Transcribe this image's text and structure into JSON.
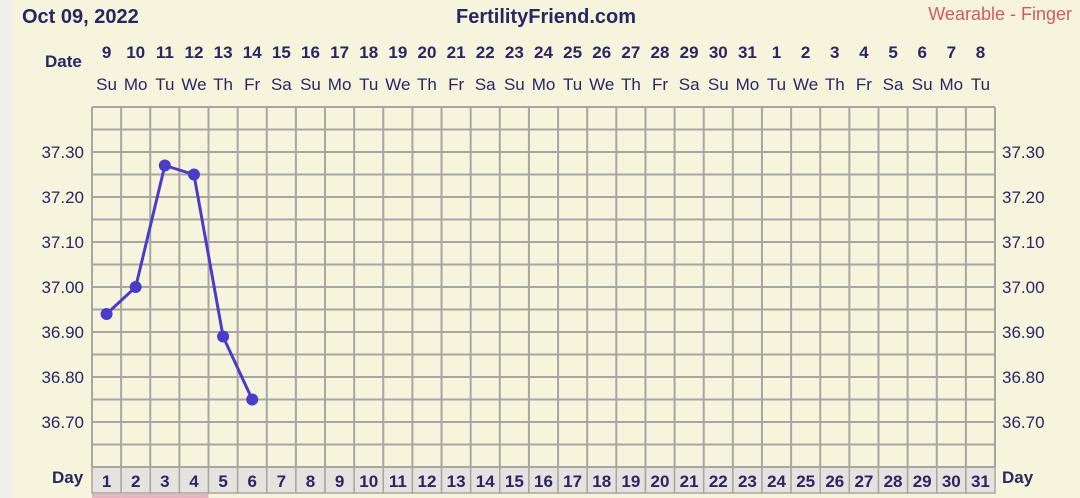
{
  "header": {
    "date": "Oct 09, 2022",
    "site": "FertilityFriend.com",
    "sensor": "Wearable - Finger"
  },
  "labels": {
    "date": "Date",
    "day": "Day"
  },
  "colors": {
    "line": "#4a3cc8",
    "grid": "#a8a6a0",
    "background": "#f6f4dd",
    "text": "#2b2563",
    "sensor": "#d35a5e",
    "day_cell": "#e4e3e0",
    "highlight": "#e8b4c4"
  },
  "chart_data": {
    "type": "line",
    "dates": [
      "9",
      "10",
      "11",
      "12",
      "13",
      "14",
      "15",
      "16",
      "17",
      "18",
      "19",
      "20",
      "21",
      "22",
      "23",
      "24",
      "25",
      "26",
      "27",
      "28",
      "29",
      "30",
      "31",
      "1",
      "2",
      "3",
      "4",
      "5",
      "6",
      "7",
      "8"
    ],
    "weekdays": [
      "Su",
      "Mo",
      "Tu",
      "We",
      "Th",
      "Fr",
      "Sa",
      "Su",
      "Mo",
      "Tu",
      "We",
      "Th",
      "Fr",
      "Sa",
      "Su",
      "Mo",
      "Tu",
      "We",
      "Th",
      "Fr",
      "Sa",
      "Su",
      "Mo",
      "Tu",
      "We",
      "Th",
      "Fr",
      "Sa",
      "Su",
      "Mo",
      "Tu"
    ],
    "days": [
      "1",
      "2",
      "3",
      "4",
      "5",
      "6",
      "7",
      "8",
      "9",
      "10",
      "11",
      "12",
      "13",
      "14",
      "15",
      "16",
      "17",
      "18",
      "19",
      "20",
      "21",
      "22",
      "23",
      "24",
      "25",
      "26",
      "27",
      "28",
      "29",
      "30",
      "31"
    ],
    "y_ticks": [
      "37.30",
      "37.20",
      "37.10",
      "37.00",
      "36.90",
      "36.80",
      "36.70"
    ],
    "ylim": [
      36.6,
      37.4
    ],
    "highlighted_days": [
      1,
      2,
      3,
      4
    ],
    "series": [
      {
        "x": [
          1,
          2,
          3,
          4,
          5,
          6
        ],
        "values": [
          36.94,
          37.0,
          37.27,
          37.25,
          36.89,
          36.75
        ]
      }
    ]
  }
}
